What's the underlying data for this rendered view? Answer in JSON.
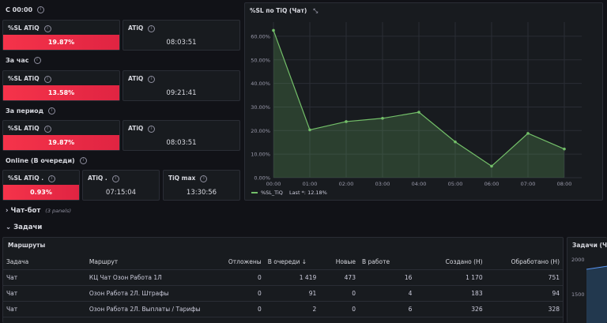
{
  "sections": {
    "since_midnight": "С 00:00",
    "per_hour": "За час",
    "per_period": "За период",
    "online": "Online (В очереди)",
    "chatbot": "Чат-бот",
    "chatbot_panels": "(3 panels)",
    "tasks": "Задачи"
  },
  "stats": {
    "row1": {
      "sl_label": "%SL ATiQ",
      "sl_value": "19.87%",
      "atiq_label": "ATiQ",
      "atiq_value": "08:03:51"
    },
    "row2": {
      "sl_label": "%SL ATiQ",
      "sl_value": "13.58%",
      "atiq_label": "ATiQ",
      "atiq_value": "09:21:41"
    },
    "row3": {
      "sl_label": "%SL ATiQ",
      "sl_value": "19.87%",
      "atiq_label": "ATiQ",
      "atiq_value": "08:03:51"
    },
    "online": {
      "sl_label": "%SL ATiQ .",
      "sl_value": "0.93%",
      "atiq_label": "ATiQ .",
      "atiq_value": "07:15:04",
      "max_label": "TiQ max",
      "max_value": "13:30:56"
    }
  },
  "chart_panel": {
    "title": "%SL по TiQ (Чат)",
    "legend": "%SL_TiQ",
    "legend_last": "Last *: 12.18%"
  },
  "chart_data": {
    "type": "area",
    "x": [
      "00:00",
      "01:00",
      "02:00",
      "03:00",
      "04:00",
      "05:00",
      "06:00",
      "07:00",
      "08:00"
    ],
    "y_ticks": [
      "0.00%",
      "10.00%",
      "20.00%",
      "30.00%",
      "40.00%",
      "50.00%",
      "60.00%"
    ],
    "ylim": [
      0,
      66
    ],
    "series": [
      {
        "name": "%SL_TiQ",
        "values": [
          62.5,
          20.3,
          23.8,
          25.2,
          27.8,
          15.2,
          4.9,
          18.8,
          12.18
        ]
      }
    ],
    "color": "#73bf69"
  },
  "routes": {
    "title": "Маршруты",
    "columns": [
      "Задача",
      "Маршрут",
      "Отложены",
      "В очереди ↓",
      "Новые",
      "В работе",
      "Создано (Н)",
      "Обработано (Н)"
    ],
    "rows": [
      [
        "Чат",
        "КЦ Чат Озон Работа 1Л",
        "0",
        "1 419",
        "473",
        "16",
        "1 170",
        "751"
      ],
      [
        "Чат",
        "Озон Работа 2Л. Штрафы",
        "0",
        "91",
        "0",
        "4",
        "183",
        "94"
      ],
      [
        "Чат",
        "Озон Работа 2Л. Выплаты / Тарифы",
        "0",
        "2",
        "0",
        "6",
        "326",
        "328"
      ]
    ]
  },
  "tasks_chart": {
    "title": "Задачи (Ча",
    "y_ticks": [
      "2000",
      "1500"
    ]
  }
}
